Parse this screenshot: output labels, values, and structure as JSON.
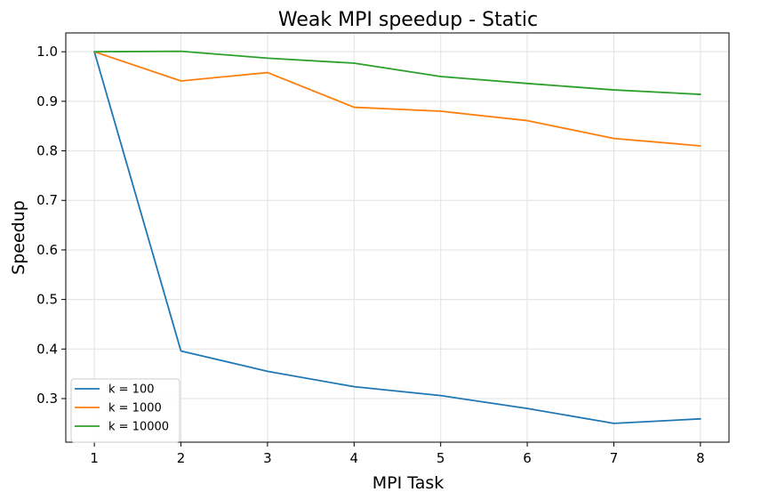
{
  "chart_data": {
    "type": "line",
    "title": "Weak MPI speedup - Static",
    "xlabel": "MPI Task",
    "ylabel": "Speedup",
    "x": [
      1,
      2,
      3,
      4,
      5,
      6,
      7,
      8
    ],
    "xticks": [
      "1",
      "2",
      "3",
      "4",
      "5",
      "6",
      "7",
      "8"
    ],
    "yticks": [
      "0.3",
      "0.4",
      "0.5",
      "0.6",
      "0.7",
      "0.8",
      "0.9",
      "1.0"
    ],
    "xlim": [
      0.67,
      8.33
    ],
    "ylim": [
      0.212,
      1.038
    ],
    "grid": true,
    "legend_position": "lower-left",
    "series": [
      {
        "name": "k = 100",
        "color": "#1f77b4",
        "values": [
          1.0,
          0.396,
          0.355,
          0.324,
          0.306,
          0.28,
          0.25,
          0.259
        ]
      },
      {
        "name": "k = 1000",
        "color": "#ff7f0e",
        "values": [
          1.0,
          0.941,
          0.958,
          0.888,
          0.88,
          0.861,
          0.825,
          0.81
        ]
      },
      {
        "name": "k = 10000",
        "color": "#2ca02c",
        "values": [
          1.0,
          1.001,
          0.987,
          0.977,
          0.95,
          0.936,
          0.923,
          0.914
        ]
      }
    ]
  }
}
